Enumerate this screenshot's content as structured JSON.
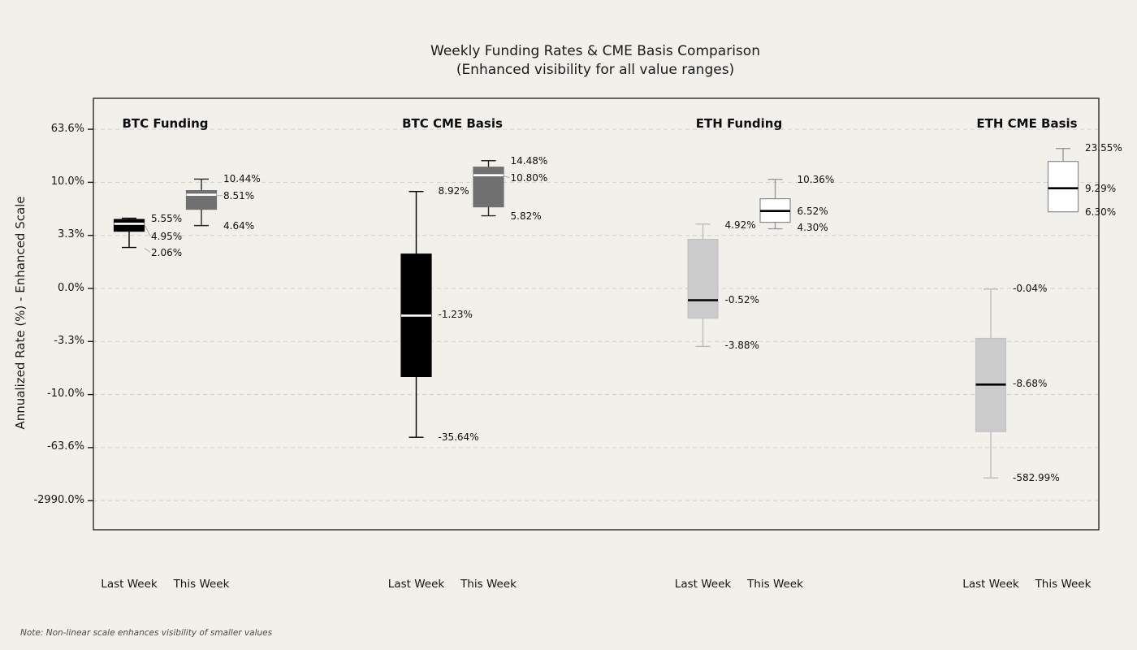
{
  "colors": {
    "background": "#f2f0eb",
    "grid": "#d0cec7",
    "spine": "#1a1a1a",
    "tick": "#1a1a1a",
    "text": "#111111",
    "note_text": "#4a4a4a",
    "leader": "#aeaeae",
    "box_styles": {
      "black": {
        "fill": "#000000",
        "stroke": "#000000",
        "median": "#ffffff",
        "whisker": "#000000"
      },
      "darkgray": {
        "fill": "#707070",
        "stroke": "#707070",
        "median": "#ffffff",
        "whisker": "#262626"
      },
      "lightgray": {
        "fill": "#cbcbcb",
        "stroke": "#c3c3c3",
        "median": "#000000",
        "whisker": "#bdbdbd"
      },
      "white": {
        "fill": "#ffffff",
        "stroke": "#8a8a8a",
        "median": "#000000",
        "whisker": "#9a9a9a"
      }
    }
  },
  "chart_data": {
    "type": "boxplot",
    "title": "Weekly Funding Rates & CME Basis Comparison",
    "subtitle": "(Enhanced visibility for all value ranges)",
    "ylabel": "Annualized Rate (%) - Enhanced Scale",
    "note": "Note: Non-linear scale enhances visibility of smaller values",
    "grid": true,
    "y_ticks": [
      {
        "value": 63.6,
        "label": "63.6%"
      },
      {
        "value": 10.0,
        "label": "10.0%"
      },
      {
        "value": 3.3,
        "label": "3.3%"
      },
      {
        "value": 0.0,
        "label": "0.0%"
      },
      {
        "value": -3.3,
        "label": "-3.3%"
      },
      {
        "value": -10.0,
        "label": "-10.0%"
      },
      {
        "value": -63.6,
        "label": "-63.6%"
      },
      {
        "value": -2990.0,
        "label": "-2990.0%"
      }
    ],
    "scale_anchors": [
      [
        -2990,
        -4
      ],
      [
        -582.99,
        -3.571
      ],
      [
        -63.6,
        -3
      ],
      [
        -35.64,
        -2.806
      ],
      [
        -10,
        -2
      ],
      [
        -8.68,
        -1.812
      ],
      [
        -3.88,
        -1.093
      ],
      [
        -3.3,
        -1
      ],
      [
        -1.23,
        -0.512
      ],
      [
        -0.52,
        -0.222
      ],
      [
        -0.04,
        -0.012
      ],
      [
        0,
        0
      ],
      [
        2.06,
        0.772
      ],
      [
        3.3,
        1
      ],
      [
        4.3,
        1.124
      ],
      [
        4.64,
        1.185
      ],
      [
        4.92,
        1.213
      ],
      [
        4.95,
        1.218
      ],
      [
        5.55,
        1.323
      ],
      [
        5.82,
        1.369
      ],
      [
        6.3,
        1.445
      ],
      [
        6.52,
        1.46
      ],
      [
        8.51,
        1.766
      ],
      [
        8.92,
        1.827
      ],
      [
        9.29,
        1.888
      ],
      [
        10,
        2
      ],
      [
        10.36,
        2.057
      ],
      [
        10.44,
        2.06
      ],
      [
        10.8,
        2.133
      ],
      [
        14.48,
        2.408
      ],
      [
        23.55,
        2.638
      ],
      [
        63.6,
        3
      ],
      [
        2990,
        4
      ]
    ],
    "groups": [
      {
        "title": "BTC Funding",
        "boxes": [
          {
            "category": "Last Week",
            "style": "black",
            "whisker_low": 2.06,
            "q1": 3.93,
            "median": 4.95,
            "q3": 5.42,
            "whisker_high": 5.55,
            "annotations": [
              {
                "text": "5.55%",
                "value": 5.55,
                "dy": 0,
                "leader": false
              },
              {
                "text": "4.95%",
                "value": 4.95,
                "dy": 15,
                "leader": true
              },
              {
                "text": "2.06%",
                "value": 2.06,
                "dy": 6,
                "leader": true
              }
            ]
          },
          {
            "category": "This Week",
            "style": "darkgray",
            "whisker_low": 4.64,
            "q1": 6.72,
            "median": 8.51,
            "q3": 9.02,
            "whisker_high": 10.44,
            "annotations": [
              {
                "text": "10.44%",
                "value": 10.44,
                "dy": -1,
                "leader": false
              },
              {
                "text": "8.51%",
                "value": 8.51,
                "dy": 1,
                "leader": true
              },
              {
                "text": "4.64%",
                "value": 4.64,
                "dy": 0,
                "leader": false
              }
            ]
          }
        ]
      },
      {
        "title": "BTC CME Basis",
        "boxes": [
          {
            "category": "Last Week",
            "style": "black",
            "whisker_low": -35.64,
            "q1": -7.66,
            "median": -1.23,
            "q3": 1.73,
            "whisker_high": 8.92,
            "annotations": [
              {
                "text": "8.92%",
                "value": 8.92,
                "dy": -1,
                "leader": false
              },
              {
                "text": "-1.23%",
                "value": -1.23,
                "dy": -1,
                "leader": false
              },
              {
                "text": "-35.64%",
                "value": -35.64,
                "dy": 0,
                "leader": false
              }
            ]
          },
          {
            "category": "This Week",
            "style": "darkgray",
            "whisker_low": 5.82,
            "q1": 7.02,
            "median": 10.8,
            "q3": 12.85,
            "whisker_high": 14.48,
            "annotations": [
              {
                "text": "14.48%",
                "value": 14.48,
                "dy": 0,
                "leader": false
              },
              {
                "text": "10.80%",
                "value": 10.8,
                "dy": 3,
                "leader": true
              },
              {
                "text": "5.82%",
                "value": 5.82,
                "dy": 0,
                "leader": false
              }
            ]
          }
        ]
      },
      {
        "title": "ETH Funding",
        "boxes": [
          {
            "category": "Last Week",
            "style": "lightgray",
            "whisker_low": -3.88,
            "q1": -1.44,
            "median": -0.52,
            "q3": 2.89,
            "whisker_high": 4.92,
            "annotations": [
              {
                "text": "4.92%",
                "value": 4.92,
                "dy": 1,
                "leader": false
              },
              {
                "text": "-0.52%",
                "value": -0.52,
                "dy": -1,
                "leader": false
              },
              {
                "text": "-3.88%",
                "value": -3.88,
                "dy": -1,
                "leader": false
              }
            ]
          },
          {
            "category": "This Week",
            "style": "white",
            "whisker_low": 4.3,
            "q1": 5.11,
            "median": 6.52,
            "q3": 8.02,
            "whisker_high": 10.36,
            "annotations": [
              {
                "text": "10.36%",
                "value": 10.36,
                "dy": 0,
                "leader": false
              },
              {
                "text": "6.52%",
                "value": 6.52,
                "dy": 0,
                "leader": false
              },
              {
                "text": "4.30%",
                "value": 4.3,
                "dy": -2,
                "leader": false
              }
            ]
          }
        ]
      },
      {
        "title": "ETH CME Basis",
        "boxes": [
          {
            "category": "Last Week",
            "style": "lightgray",
            "whisker_low": -582.99,
            "q1": -32.2,
            "median": -8.68,
            "q3": -3.05,
            "whisker_high": -0.04,
            "annotations": [
              {
                "text": "-0.04%",
                "value": -0.04,
                "dy": -1,
                "leader": false
              },
              {
                "text": "-8.68%",
                "value": -8.68,
                "dy": -1,
                "leader": false
              },
              {
                "text": "-582.99%",
                "value": -582.99,
                "dy": 0,
                "leader": false
              }
            ]
          },
          {
            "category": "This Week",
            "style": "white",
            "whisker_low": 6.3,
            "q1": 6.3,
            "median": 9.29,
            "q3": 14.29,
            "whisker_high": 23.55,
            "annotations": [
              {
                "text": "23.55%",
                "value": 23.55,
                "dy": -1,
                "leader": false
              },
              {
                "text": "9.29%",
                "value": 9.29,
                "dy": 0,
                "leader": false
              },
              {
                "text": "6.30%",
                "value": 6.3,
                "dy": 0,
                "leader": false
              }
            ]
          }
        ]
      }
    ]
  }
}
